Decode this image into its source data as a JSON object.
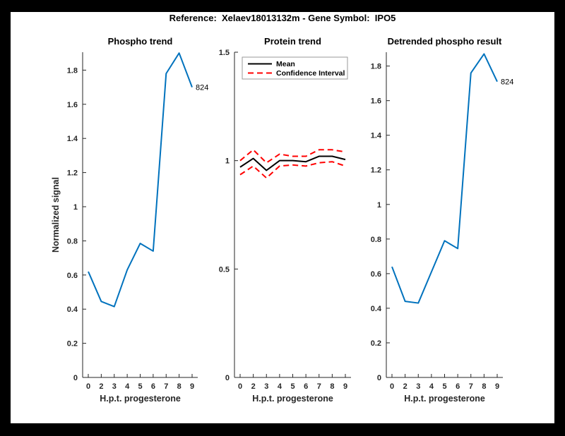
{
  "figure": {
    "title": "Reference:  Xelaev18013132m - Gene Symbol:  IPO5",
    "frame_color": "#000000",
    "canvas_color": "#ffffff"
  },
  "colors": {
    "matlab_blue": "#0072BD",
    "ci_red": "#FF0000",
    "mean_black": "#000000",
    "axis_gray": "#262626"
  },
  "chart_data": [
    {
      "type": "line",
      "title": "Phospho trend",
      "xlabel": "H.p.t. progesterone",
      "ylabel": "Normalized signal",
      "categories": [
        "0",
        "2",
        "3",
        "4",
        "5",
        "6",
        "7",
        "8",
        "9"
      ],
      "ylim": [
        0,
        1.905
      ],
      "yticks": [
        0,
        0.2,
        0.4,
        0.6,
        0.8,
        1,
        1.2,
        1.4,
        1.6,
        1.8
      ],
      "ytick_labels": [
        "0",
        "0.2",
        "0.4",
        "0.6",
        "0.8",
        "1",
        "1.2",
        "1.4",
        "1.6",
        "1.8"
      ],
      "grid": false,
      "series": [
        {
          "name": "Phospho",
          "color": "#0072BD",
          "width": 2,
          "dash": null,
          "legend": false,
          "values": [
            0.62,
            0.445,
            0.415,
            0.63,
            0.785,
            0.74,
            1.78,
            1.9,
            1.7
          ]
        }
      ],
      "annotation": {
        "text": "824",
        "series": 0,
        "point": 8
      },
      "legend_show": false
    },
    {
      "type": "line",
      "title": "Protein trend",
      "xlabel": "H.p.t. progesterone",
      "ylabel": "",
      "categories": [
        "0",
        "2",
        "3",
        "4",
        "5",
        "6",
        "7",
        "8",
        "9"
      ],
      "ylim": [
        0,
        1.5
      ],
      "yticks": [
        0,
        0.5,
        1,
        1.5
      ],
      "ytick_labels": [
        "0",
        "0.5",
        "1",
        "1.5"
      ],
      "grid": false,
      "series": [
        {
          "name": "Confidence Interval",
          "color": "#FF0000",
          "width": 2,
          "dash": "8,5",
          "legend": true,
          "values": [
            1.0,
            1.05,
            0.99,
            1.03,
            1.02,
            1.02,
            1.05,
            1.05,
            1.04
          ]
        },
        {
          "name": "Confidence Interval lower",
          "color": "#FF0000",
          "width": 2,
          "dash": "8,5",
          "legend": false,
          "values": [
            0.935,
            0.975,
            0.92,
            0.975,
            0.98,
            0.975,
            0.99,
            0.995,
            0.975
          ]
        },
        {
          "name": "Mean",
          "color": "#000000",
          "width": 2,
          "dash": null,
          "legend": true,
          "values": [
            0.97,
            1.01,
            0.955,
            1.0,
            1.0,
            0.995,
            1.02,
            1.02,
            1.005
          ]
        }
      ],
      "annotation": null,
      "legend_show": true,
      "legend_position": "north-inside",
      "legend_entries": [
        "Mean",
        "Confidence Interval"
      ]
    },
    {
      "type": "line",
      "title": "Detrended phospho result",
      "xlabel": "H.p.t. progesterone",
      "ylabel": "",
      "categories": [
        "0",
        "2",
        "3",
        "4",
        "5",
        "6",
        "7",
        "8",
        "9"
      ],
      "ylim": [
        0,
        1.88
      ],
      "yticks": [
        0,
        0.2,
        0.4,
        0.6,
        0.8,
        1,
        1.2,
        1.4,
        1.6,
        1.8
      ],
      "ytick_labels": [
        "0",
        "0.2",
        "0.4",
        "0.6",
        "0.8",
        "1",
        "1.2",
        "1.4",
        "1.6",
        "1.8"
      ],
      "grid": false,
      "series": [
        {
          "name": "Detrended phospho",
          "color": "#0072BD",
          "width": 2,
          "dash": null,
          "legend": false,
          "values": [
            0.64,
            0.44,
            0.43,
            0.61,
            0.79,
            0.745,
            1.76,
            1.87,
            1.71
          ]
        }
      ],
      "annotation": {
        "text": "824",
        "series": 0,
        "point": 8
      },
      "legend_show": false
    }
  ]
}
